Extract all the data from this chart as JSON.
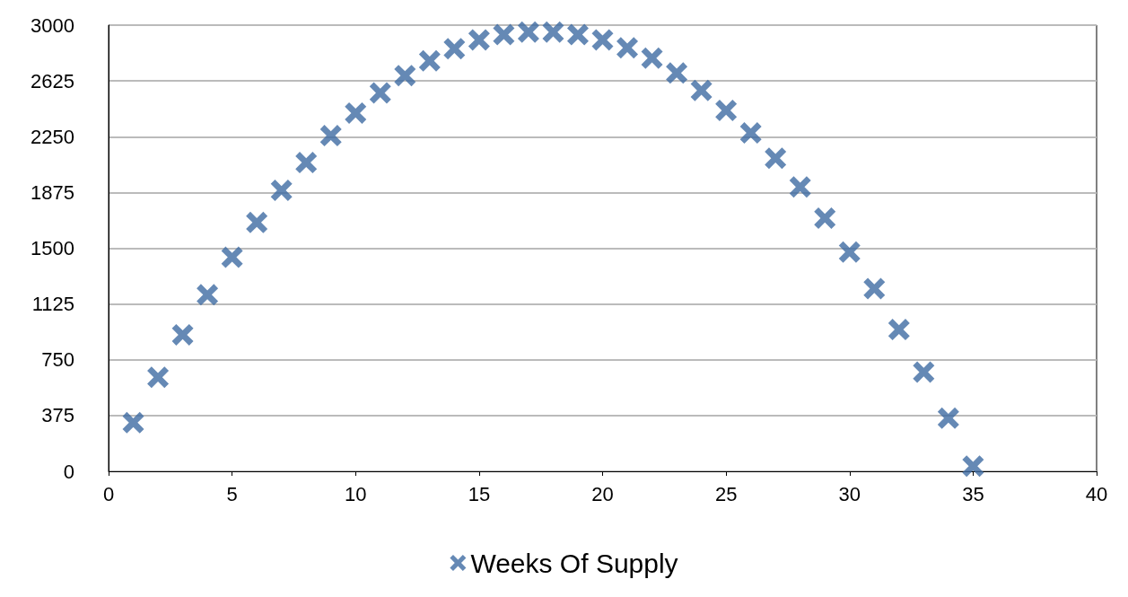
{
  "chart_data": {
    "type": "scatter",
    "x": [
      1,
      2,
      3,
      4,
      5,
      6,
      7,
      8,
      9,
      10,
      11,
      12,
      13,
      14,
      15,
      16,
      17,
      18,
      19,
      20,
      21,
      22,
      23,
      24,
      25,
      26,
      27,
      28,
      29,
      30,
      31,
      32,
      33,
      34,
      35
    ],
    "series": [
      {
        "name": "Weeks Of Supply",
        "color": "#3f6ca3",
        "values": [
          327,
          632,
          918,
          1187,
          1439,
          1673,
          1889,
          2076,
          2257,
          2409,
          2544,
          2661,
          2760,
          2842,
          2901,
          2936,
          2953,
          2953,
          2936,
          2901,
          2848,
          2778,
          2678,
          2561,
          2427,
          2275,
          2105,
          1912,
          1702,
          1474,
          1228,
          953,
          667,
          357,
          35
        ]
      }
    ],
    "xlim": [
      0,
      40
    ],
    "xticks": [
      0,
      5,
      10,
      15,
      20,
      25,
      30,
      35,
      40
    ],
    "ylim": [
      0,
      3000
    ],
    "yticks": [
      0,
      375,
      750,
      1125,
      1500,
      1875,
      2250,
      2625,
      3000
    ],
    "grid": "y",
    "legend": "bottom",
    "marker": "cross"
  }
}
